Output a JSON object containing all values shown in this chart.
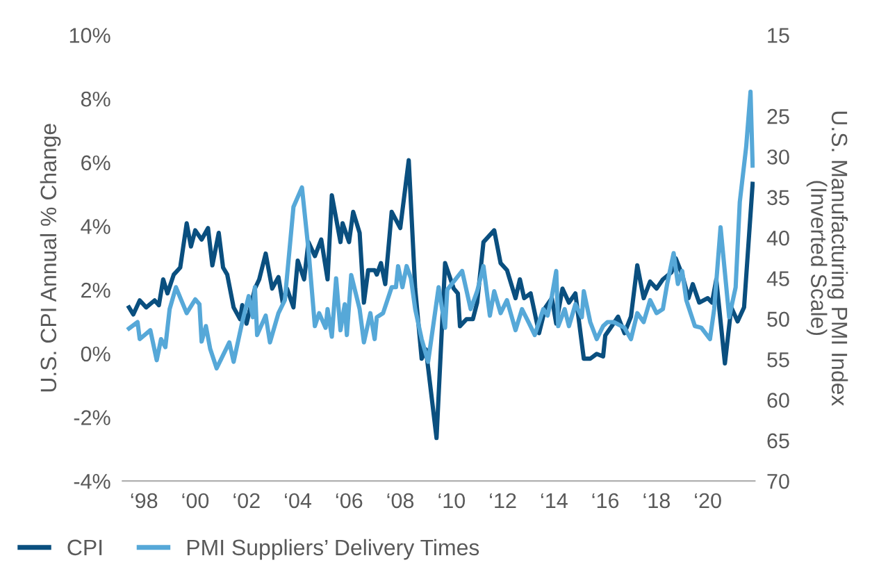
{
  "chart_data": {
    "type": "line",
    "xlim": [
      "1997-03",
      "2021-11"
    ],
    "xticks": [
      {
        "value": "1998",
        "label": "‘98"
      },
      {
        "value": "2000",
        "label": "‘00"
      },
      {
        "value": "2002",
        "label": "‘02"
      },
      {
        "value": "2004",
        "label": "‘04"
      },
      {
        "value": "2006",
        "label": "‘06"
      },
      {
        "value": "2008",
        "label": "‘08"
      },
      {
        "value": "2010",
        "label": "‘10"
      },
      {
        "value": "2012",
        "label": "‘12"
      },
      {
        "value": "2014",
        "label": "‘14"
      },
      {
        "value": "2016",
        "label": "‘16"
      },
      {
        "value": "2018",
        "label": "‘18"
      },
      {
        "value": "2020",
        "label": "‘20"
      }
    ],
    "ylim": [
      -4,
      10
    ],
    "yticks": [
      {
        "value": -4,
        "label": "-4%"
      },
      {
        "value": -2,
        "label": "-2%"
      },
      {
        "value": 0,
        "label": "0%"
      },
      {
        "value": 2,
        "label": "2%"
      },
      {
        "value": 4,
        "label": "4%"
      },
      {
        "value": 6,
        "label": "6%"
      },
      {
        "value": 8,
        "label": "8%"
      },
      {
        "value": 10,
        "label": "10%"
      }
    ],
    "y2lim": [
      70,
      15
    ],
    "y2ticks": [
      15,
      25,
      30,
      35,
      40,
      45,
      50,
      55,
      60,
      65,
      70
    ],
    "ylabel": "U.S. CPI Annual % Change",
    "y2label": "U.S. Manufacturing PMI Index\n(Inverted Scale)",
    "grid": false,
    "legend": "bottom",
    "marker": "none",
    "line_style": "solid",
    "series": [
      {
        "name": "CPI",
        "color": "#0a4f7f",
        "x": [
          "1997-06",
          "1997-08",
          "1997-11",
          "1998-02",
          "1998-06",
          "1998-08",
          "1998-10",
          "1998-12",
          "1999-03",
          "1999-06",
          "1999-09",
          "1999-11",
          "2000-01",
          "2000-04",
          "2000-07",
          "2000-09",
          "2000-12",
          "2001-02",
          "2001-04",
          "2001-07",
          "2001-10",
          "2001-11",
          "2002-01",
          "2002-05",
          "2002-07",
          "2002-10",
          "2003-01",
          "2003-04",
          "2003-06",
          "2003-08",
          "2003-11",
          "2004-01",
          "2004-04",
          "2004-06",
          "2004-09",
          "2004-12",
          "2005-03",
          "2005-05",
          "2005-09",
          "2005-10",
          "2006-01",
          "2006-03",
          "2006-06",
          "2006-08",
          "2006-10",
          "2007-01",
          "2007-02",
          "2007-04",
          "2007-06",
          "2007-09",
          "2008-01",
          "2008-05",
          "2008-08",
          "2008-11",
          "2009-01",
          "2009-06",
          "2009-10",
          "2010-02",
          "2010-04",
          "2010-05",
          "2010-08",
          "2010-11",
          "2011-01",
          "2011-04",
          "2011-09",
          "2011-12",
          "2012-03",
          "2012-07",
          "2012-09",
          "2012-11",
          "2013-02",
          "2013-06",
          "2013-09",
          "2013-12",
          "2014-02",
          "2014-05",
          "2014-08",
          "2014-11",
          "2015-03",
          "2015-06",
          "2015-09",
          "2015-12",
          "2016-01",
          "2016-04",
          "2016-07",
          "2016-10",
          "2017-01",
          "2017-04",
          "2017-07",
          "2017-10",
          "2018-01",
          "2018-04",
          "2018-08",
          "2018-10",
          "2019-01",
          "2019-04",
          "2019-06",
          "2019-09",
          "2020-01",
          "2020-03",
          "2020-05",
          "2020-09",
          "2020-12",
          "2021-03",
          "2021-06",
          "2021-10"
        ],
        "values": [
          1.45,
          1.23,
          1.67,
          1.45,
          1.67,
          1.52,
          2.33,
          1.89,
          2.48,
          2.7,
          4.09,
          3.36,
          3.87,
          3.58,
          3.94,
          2.77,
          3.79,
          2.7,
          2.48,
          1.45,
          1.08,
          1.52,
          0.94,
          2.04,
          2.33,
          3.14,
          2.04,
          2.4,
          1.6,
          2.04,
          1.45,
          2.92,
          2.33,
          3.5,
          3.06,
          3.58,
          2.33,
          4.97,
          3.5,
          4.09,
          3.5,
          4.45,
          3.79,
          1.6,
          2.62,
          2.62,
          2.48,
          2.84,
          2.18,
          4.45,
          3.94,
          6.07,
          2.04,
          -0.16,
          0.13,
          -2.65,
          2.84,
          2.04,
          1.89,
          0.86,
          1.08,
          1.08,
          1.6,
          3.5,
          3.87,
          2.84,
          2.62,
          1.74,
          2.33,
          1.74,
          1.89,
          0.64,
          1.45,
          1.74,
          0.94,
          2.04,
          1.6,
          1.89,
          -0.16,
          -0.16,
          -0.01,
          -0.09,
          0.57,
          0.86,
          1.16,
          0.64,
          1.16,
          2.77,
          1.74,
          2.26,
          2.04,
          2.33,
          2.55,
          2.99,
          2.48,
          1.74,
          2.18,
          1.6,
          1.74,
          1.6,
          2.33,
          -0.31,
          1.45,
          1.01,
          1.45,
          5.33
        ]
      },
      {
        "name": "PMI Suppliers’ Delivery Times",
        "color": "#56a8d8",
        "axis": "y2",
        "x": [
          "1997-06",
          "1997-10",
          "1997-11",
          "1998-04",
          "1998-07",
          "1998-09",
          "1998-11",
          "1999-01",
          "1999-04",
          "1999-09",
          "2000-01",
          "2000-03",
          "2000-04",
          "2000-06",
          "2000-08",
          "2000-11",
          "2001-05",
          "2001-07",
          "2001-11",
          "2002-02",
          "2002-04",
          "2002-05",
          "2002-06",
          "2002-10",
          "2002-12",
          "2003-04",
          "2003-07",
          "2003-11",
          "2004-03",
          "2004-06",
          "2004-09",
          "2004-11",
          "2005-02",
          "2005-03",
          "2005-05",
          "2005-07",
          "2005-09",
          "2005-11",
          "2005-12",
          "2006-02",
          "2006-06",
          "2006-08",
          "2006-11",
          "2007-01",
          "2007-02",
          "2007-05",
          "2007-09",
          "2007-11",
          "2007-12",
          "2008-02",
          "2008-04",
          "2008-06",
          "2008-08",
          "2008-11",
          "2009-02",
          "2009-07",
          "2009-10",
          "2009-11",
          "2010-06",
          "2010-10",
          "2011-01",
          "2011-04",
          "2011-07",
          "2011-09",
          "2011-12",
          "2012-03",
          "2012-07",
          "2012-10",
          "2013-01",
          "2013-04",
          "2013-08",
          "2013-10",
          "2013-12",
          "2014-02",
          "2014-03",
          "2014-06",
          "2014-08",
          "2014-11",
          "2015-02",
          "2015-03",
          "2015-06",
          "2015-09",
          "2015-12",
          "2016-02",
          "2016-05",
          "2016-10",
          "2017-01",
          "2017-04",
          "2017-07",
          "2017-10",
          "2018-01",
          "2018-04",
          "2018-06",
          "2018-09",
          "2018-11",
          "2019-01",
          "2019-03",
          "2019-07",
          "2019-10",
          "2020-02",
          "2020-04",
          "2020-07",
          "2020-11",
          "2021-02",
          "2021-04",
          "2021-07",
          "2021-09",
          "2021-10"
        ],
        "values": [
          51.2,
          50.4,
          52.5,
          51.4,
          55.1,
          52.5,
          53.5,
          48.8,
          46.1,
          49.3,
          47.6,
          48.2,
          52.8,
          50.9,
          53.7,
          56.1,
          52.9,
          55.3,
          50.4,
          47.2,
          49.8,
          46.1,
          52.0,
          49.6,
          52.9,
          49.3,
          47.7,
          36.2,
          33.8,
          41.4,
          50.9,
          49.3,
          51.1,
          48.8,
          52.2,
          45.0,
          51.4,
          48.2,
          52.0,
          44.6,
          48.8,
          52.9,
          49.3,
          52.5,
          49.8,
          49.3,
          46.1,
          46.1,
          43.5,
          46.1,
          43.5,
          45.0,
          48.8,
          52.5,
          55.3,
          46.1,
          51.1,
          46.4,
          44.1,
          48.8,
          46.6,
          43.5,
          49.6,
          46.6,
          49.3,
          47.7,
          51.4,
          48.8,
          50.4,
          52.0,
          48.8,
          49.6,
          47.2,
          44.1,
          50.9,
          48.8,
          50.9,
          48.2,
          49.8,
          46.6,
          50.4,
          52.5,
          50.9,
          50.4,
          50.4,
          51.1,
          52.5,
          49.3,
          50.4,
          47.7,
          49.3,
          48.8,
          45.7,
          41.9,
          45.7,
          44.1,
          47.7,
          50.9,
          51.1,
          52.5,
          48.8,
          38.7,
          49.8,
          46.1,
          35.6,
          28.8,
          22.0,
          31.1
        ]
      }
    ]
  }
}
